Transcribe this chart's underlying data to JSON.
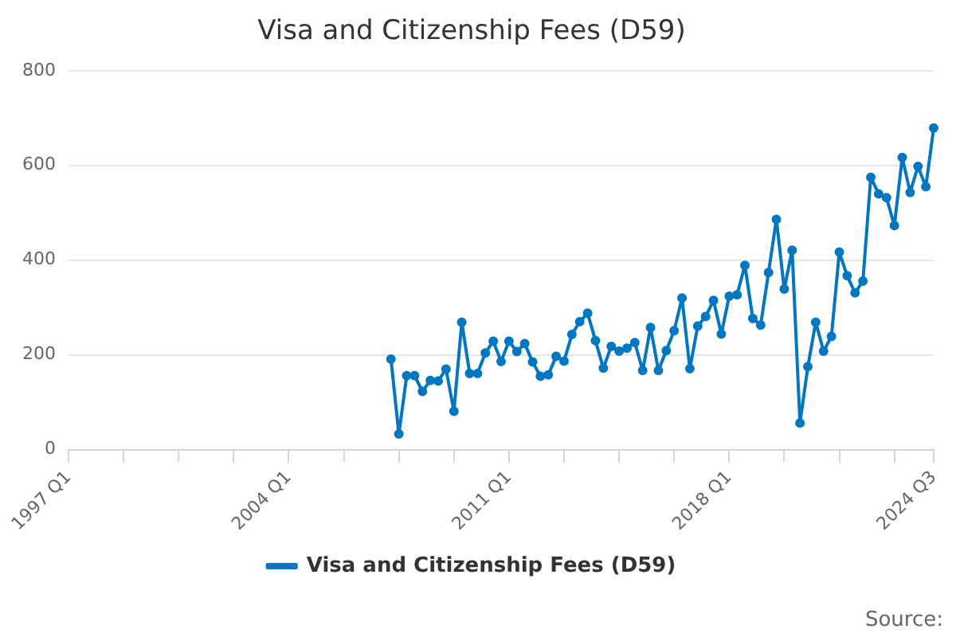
{
  "chart_data": {
    "type": "line",
    "title": "Visa and Citizenship Fees (D59)",
    "categories": [
      "1997 Q1",
      null,
      null,
      null,
      null,
      null,
      null,
      null,
      null,
      null,
      null,
      null,
      null,
      null,
      null,
      null,
      null,
      null,
      null,
      null,
      null,
      null,
      null,
      null,
      null,
      null,
      null,
      null,
      "2004 Q1",
      null,
      null,
      null,
      null,
      null,
      null,
      null,
      null,
      null,
      null,
      null,
      null,
      null,
      null,
      null,
      null,
      null,
      null,
      null,
      null,
      null,
      null,
      null,
      null,
      null,
      null,
      null,
      "2011 Q1",
      null,
      null,
      null,
      null,
      null,
      null,
      null,
      null,
      null,
      null,
      null,
      null,
      null,
      null,
      null,
      null,
      null,
      null,
      null,
      null,
      null,
      null,
      null,
      null,
      null,
      null,
      null,
      "2018 Q1",
      null,
      null,
      null,
      null,
      null,
      null,
      null,
      null,
      null,
      null,
      null,
      null,
      null,
      null,
      null,
      null,
      null,
      null,
      null,
      null,
      null,
      null,
      null,
      null,
      null,
      "2024 Q3"
    ],
    "series": [
      {
        "name": "Visa and Citizenship Fees (D59)",
        "color": "#0077c0",
        "values": [
          null,
          null,
          null,
          null,
          null,
          null,
          null,
          null,
          null,
          null,
          null,
          null,
          null,
          null,
          null,
          null,
          null,
          null,
          null,
          null,
          null,
          null,
          null,
          null,
          null,
          null,
          null,
          null,
          null,
          null,
          null,
          null,
          null,
          null,
          null,
          null,
          null,
          null,
          null,
          null,
          null,
          191,
          33,
          156,
          156,
          123,
          146,
          145,
          170,
          81,
          269,
          161,
          161,
          204,
          229,
          186,
          229,
          207,
          224,
          185,
          155,
          158,
          197,
          187,
          243,
          270,
          288,
          230,
          172,
          218,
          208,
          214,
          226,
          167,
          258,
          167,
          209,
          251,
          320,
          171,
          261,
          281,
          315,
          244,
          324,
          327,
          389,
          277,
          263,
          374,
          486,
          339,
          421,
          56,
          175,
          269,
          208,
          239,
          417,
          367,
          331,
          356,
          575,
          540,
          532,
          473,
          617,
          543,
          598,
          555,
          679
        ]
      }
    ],
    "ylim": [
      0,
      800
    ],
    "yticks": [
      0,
      200,
      400,
      600,
      800
    ],
    "grid": "y",
    "legend": "bottom",
    "marker": "circle",
    "line_style": "solid",
    "annotations": [
      "Source:"
    ]
  }
}
